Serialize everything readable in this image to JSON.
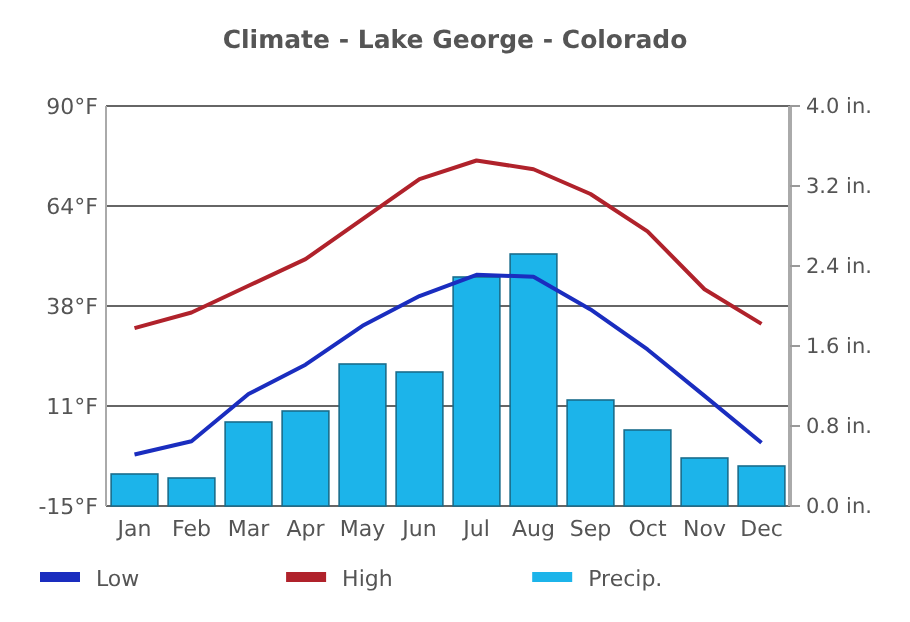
{
  "chart_data": {
    "type": "line",
    "title": "Climate - Lake George - Colorado",
    "categories": [
      "Jan",
      "Feb",
      "Mar",
      "Apr",
      "May",
      "Jun",
      "Jul",
      "Aug",
      "Sep",
      "Oct",
      "Nov",
      "Dec"
    ],
    "series": [
      {
        "name": "Low",
        "color": "#1a2dbf",
        "values": [
          -1.5,
          2,
          14.4,
          22.1,
          32.3,
          40.1,
          45.7,
          45.2,
          36.6,
          26.1,
          13.9,
          1.6
        ]
      },
      {
        "name": "High",
        "color": "#b0222b",
        "values": [
          31.7,
          35.8,
          42.8,
          49.8,
          60.3,
          70.8,
          75.7,
          73.4,
          66.9,
          57.1,
          41.9,
          32.8
        ]
      },
      {
        "name": "Precip.",
        "type": "bar",
        "axis": "y2",
        "color": "#1cb4ea",
        "values": [
          0.32,
          0.28,
          0.84,
          0.95,
          1.42,
          1.34,
          2.29,
          2.52,
          1.06,
          0.76,
          0.48,
          0.4
        ]
      }
    ],
    "ylim": [
      -15,
      90
    ],
    "yticks": [
      {
        "value": -15,
        "label": "-15°F"
      },
      {
        "value": 11.25,
        "label": "11°F"
      },
      {
        "value": 37.5,
        "label": "38°F"
      },
      {
        "value": 63.75,
        "label": "64°F"
      },
      {
        "value": 90,
        "label": "90°F"
      }
    ],
    "y2lim": [
      0,
      4
    ],
    "y2ticks": [
      {
        "value": 0,
        "label": "0.0 in."
      },
      {
        "value": 0.8,
        "label": "0.8 in."
      },
      {
        "value": 1.6,
        "label": "1.6 in."
      },
      {
        "value": 2.4,
        "label": "2.4 in."
      },
      {
        "value": 3.2,
        "label": "3.2 in."
      },
      {
        "value": 4,
        "label": "4.0 in."
      }
    ],
    "grid": "y",
    "legend": "bottom"
  }
}
